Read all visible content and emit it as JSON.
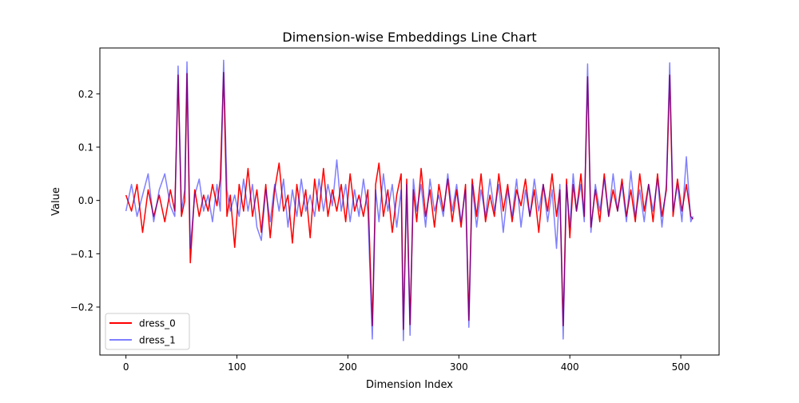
{
  "chart_data": {
    "type": "line",
    "title": "Dimension-wise Embeddings Line Chart",
    "xlabel": "Dimension Index",
    "ylabel": "Value",
    "xlim": [
      -23.5,
      534.5
    ],
    "ylim": [
      -0.29,
      0.286
    ],
    "xticks": [
      0,
      100,
      200,
      300,
      400,
      500
    ],
    "xtick_labels": [
      "0",
      "100",
      "200",
      "300",
      "400",
      "500"
    ],
    "yticks": [
      -0.2,
      -0.1,
      0.0,
      0.1,
      0.2
    ],
    "ytick_labels": [
      "−0.2",
      "−0.1",
      "0.0",
      "0.1",
      "0.2"
    ],
    "grid": false,
    "legend_position": "lower-left",
    "series": [
      {
        "name": "dress_0",
        "color": "#ff0000",
        "opacity": 1.0,
        "points": [
          [
            0,
            0.01
          ],
          [
            5,
            -0.02
          ],
          [
            10,
            0.03
          ],
          [
            15,
            -0.06
          ],
          [
            20,
            0.02
          ],
          [
            25,
            -0.03
          ],
          [
            30,
            0.01
          ],
          [
            35,
            -0.04
          ],
          [
            40,
            0.02
          ],
          [
            44,
            -0.02
          ],
          [
            47,
            0.235
          ],
          [
            50,
            -0.03
          ],
          [
            53,
            0.0
          ],
          [
            55,
            0.238
          ],
          [
            58,
            -0.117
          ],
          [
            62,
            0.02
          ],
          [
            66,
            -0.03
          ],
          [
            70,
            0.01
          ],
          [
            74,
            -0.02
          ],
          [
            78,
            0.03
          ],
          [
            82,
            -0.01
          ],
          [
            85,
            0.04
          ],
          [
            88,
            0.24
          ],
          [
            91,
            -0.03
          ],
          [
            94,
            0.01
          ],
          [
            98,
            -0.088
          ],
          [
            102,
            0.03
          ],
          [
            106,
            -0.02
          ],
          [
            110,
            0.06
          ],
          [
            114,
            -0.03
          ],
          [
            118,
            0.02
          ],
          [
            122,
            -0.06
          ],
          [
            126,
            0.03
          ],
          [
            130,
            -0.07
          ],
          [
            134,
            0.02
          ],
          [
            138,
            0.07
          ],
          [
            142,
            -0.02
          ],
          [
            146,
            0.01
          ],
          [
            150,
            -0.08
          ],
          [
            154,
            0.03
          ],
          [
            158,
            -0.03
          ],
          [
            162,
            0.02
          ],
          [
            166,
            -0.07
          ],
          [
            170,
            0.04
          ],
          [
            174,
            -0.02
          ],
          [
            178,
            0.06
          ],
          [
            182,
            -0.03
          ],
          [
            186,
            0.02
          ],
          [
            190,
            -0.02
          ],
          [
            194,
            0.03
          ],
          [
            198,
            -0.04
          ],
          [
            202,
            0.05
          ],
          [
            206,
            -0.02
          ],
          [
            210,
            0.01
          ],
          [
            214,
            -0.03
          ],
          [
            218,
            0.02
          ],
          [
            222,
            -0.235
          ],
          [
            225,
            0.03
          ],
          [
            228,
            0.07
          ],
          [
            232,
            -0.03
          ],
          [
            236,
            0.02
          ],
          [
            240,
            -0.06
          ],
          [
            244,
            0.01
          ],
          [
            248,
            0.05
          ],
          [
            250,
            -0.242
          ],
          [
            253,
            0.04
          ],
          [
            256,
            -0.233
          ],
          [
            259,
            0.02
          ],
          [
            262,
            -0.04
          ],
          [
            266,
            0.06
          ],
          [
            270,
            -0.03
          ],
          [
            274,
            0.02
          ],
          [
            278,
            -0.05
          ],
          [
            282,
            0.03
          ],
          [
            286,
            -0.02
          ],
          [
            290,
            0.04
          ],
          [
            294,
            -0.04
          ],
          [
            298,
            0.02
          ],
          [
            302,
            -0.05
          ],
          [
            306,
            0.03
          ],
          [
            309,
            -0.225
          ],
          [
            312,
            0.04
          ],
          [
            316,
            -0.03
          ],
          [
            320,
            0.05
          ],
          [
            324,
            -0.04
          ],
          [
            328,
            0.01
          ],
          [
            332,
            -0.03
          ],
          [
            336,
            0.05
          ],
          [
            340,
            -0.02
          ],
          [
            344,
            0.03
          ],
          [
            348,
            -0.04
          ],
          [
            352,
            0.02
          ],
          [
            356,
            -0.01
          ],
          [
            360,
            0.04
          ],
          [
            364,
            -0.03
          ],
          [
            368,
            0.02
          ],
          [
            372,
            -0.06
          ],
          [
            376,
            0.03
          ],
          [
            380,
            -0.02
          ],
          [
            384,
            0.05
          ],
          [
            388,
            -0.03
          ],
          [
            391,
            0.02
          ],
          [
            394,
            -0.235
          ],
          [
            397,
            0.04
          ],
          [
            400,
            -0.07
          ],
          [
            403,
            0.03
          ],
          [
            406,
            -0.02
          ],
          [
            410,
            0.05
          ],
          [
            413,
            -0.03
          ],
          [
            416,
            0.232
          ],
          [
            419,
            -0.05
          ],
          [
            423,
            0.02
          ],
          [
            427,
            -0.04
          ],
          [
            431,
            0.05
          ],
          [
            435,
            -0.03
          ],
          [
            439,
            0.02
          ],
          [
            443,
            -0.02
          ],
          [
            447,
            0.04
          ],
          [
            451,
            -0.03
          ],
          [
            455,
            0.02
          ],
          [
            459,
            -0.04
          ],
          [
            463,
            0.05
          ],
          [
            467,
            -0.02
          ],
          [
            471,
            0.03
          ],
          [
            475,
            -0.04
          ],
          [
            479,
            0.05
          ],
          [
            483,
            -0.03
          ],
          [
            487,
            0.02
          ],
          [
            490,
            0.235
          ],
          [
            493,
            -0.03
          ],
          [
            497,
            0.04
          ],
          [
            501,
            -0.02
          ],
          [
            505,
            0.03
          ],
          [
            509,
            -0.03
          ],
          [
            511,
            -0.035
          ]
        ]
      },
      {
        "name": "dress_1",
        "color": "#0000ff",
        "opacity": 0.5,
        "points": [
          [
            0,
            -0.02
          ],
          [
            5,
            0.03
          ],
          [
            10,
            -0.03
          ],
          [
            15,
            0.01
          ],
          [
            20,
            0.05
          ],
          [
            25,
            -0.04
          ],
          [
            30,
            0.02
          ],
          [
            35,
            0.05
          ],
          [
            40,
            -0.01
          ],
          [
            44,
            -0.03
          ],
          [
            47,
            0.252
          ],
          [
            50,
            -0.02
          ],
          [
            53,
            0.02
          ],
          [
            55,
            0.26
          ],
          [
            58,
            -0.09
          ],
          [
            62,
            0.01
          ],
          [
            66,
            0.04
          ],
          [
            70,
            -0.02
          ],
          [
            74,
            0.01
          ],
          [
            78,
            -0.04
          ],
          [
            82,
            0.03
          ],
          [
            85,
            -0.02
          ],
          [
            88,
            0.263
          ],
          [
            91,
            0.02
          ],
          [
            94,
            -0.02
          ],
          [
            98,
            0.01
          ],
          [
            102,
            -0.03
          ],
          [
            106,
            0.04
          ],
          [
            110,
            -0.02
          ],
          [
            114,
            0.03
          ],
          [
            118,
            -0.05
          ],
          [
            122,
            -0.075
          ],
          [
            126,
            0.02
          ],
          [
            130,
            -0.04
          ],
          [
            134,
            0.03
          ],
          [
            138,
            -0.02
          ],
          [
            142,
            0.04
          ],
          [
            146,
            -0.05
          ],
          [
            150,
            0.02
          ],
          [
            154,
            -0.03
          ],
          [
            158,
            0.04
          ],
          [
            162,
            -0.02
          ],
          [
            166,
            0.01
          ],
          [
            170,
            -0.03
          ],
          [
            174,
            0.04
          ],
          [
            178,
            -0.02
          ],
          [
            182,
            0.03
          ],
          [
            186,
            -0.01
          ],
          [
            190,
            0.076
          ],
          [
            194,
            -0.02
          ],
          [
            198,
            0.03
          ],
          [
            202,
            -0.04
          ],
          [
            206,
            0.02
          ],
          [
            210,
            -0.03
          ],
          [
            214,
            0.04
          ],
          [
            218,
            -0.02
          ],
          [
            222,
            -0.26
          ],
          [
            225,
            0.02
          ],
          [
            228,
            -0.04
          ],
          [
            232,
            0.05
          ],
          [
            236,
            -0.02
          ],
          [
            240,
            0.03
          ],
          [
            244,
            -0.05
          ],
          [
            248,
            0.02
          ],
          [
            250,
            -0.263
          ],
          [
            253,
            0.03
          ],
          [
            256,
            -0.253
          ],
          [
            259,
            0.04
          ],
          [
            262,
            -0.02
          ],
          [
            266,
            0.03
          ],
          [
            270,
            -0.05
          ],
          [
            274,
            0.04
          ],
          [
            278,
            -0.02
          ],
          [
            282,
            0.01
          ],
          [
            286,
            -0.03
          ],
          [
            290,
            0.05
          ],
          [
            294,
            -0.02
          ],
          [
            298,
            0.03
          ],
          [
            302,
            -0.04
          ],
          [
            306,
            0.02
          ],
          [
            309,
            -0.238
          ],
          [
            312,
            0.03
          ],
          [
            316,
            -0.05
          ],
          [
            320,
            0.02
          ],
          [
            324,
            -0.03
          ],
          [
            328,
            0.04
          ],
          [
            332,
            -0.02
          ],
          [
            336,
            0.03
          ],
          [
            340,
            -0.06
          ],
          [
            344,
            0.02
          ],
          [
            348,
            -0.03
          ],
          [
            352,
            0.04
          ],
          [
            356,
            -0.05
          ],
          [
            360,
            0.02
          ],
          [
            364,
            -0.03
          ],
          [
            368,
            0.04
          ],
          [
            372,
            -0.02
          ],
          [
            376,
            0.03
          ],
          [
            380,
            -0.04
          ],
          [
            384,
            0.02
          ],
          [
            388,
            -0.09
          ],
          [
            391,
            0.03
          ],
          [
            394,
            -0.26
          ],
          [
            397,
            0.03
          ],
          [
            400,
            -0.05
          ],
          [
            403,
            0.05
          ],
          [
            406,
            -0.02
          ],
          [
            410,
            0.03
          ],
          [
            413,
            -0.04
          ],
          [
            416,
            0.256
          ],
          [
            419,
            -0.06
          ],
          [
            423,
            0.03
          ],
          [
            427,
            -0.02
          ],
          [
            431,
            0.04
          ],
          [
            435,
            -0.03
          ],
          [
            439,
            0.05
          ],
          [
            443,
            -0.02
          ],
          [
            447,
            0.03
          ],
          [
            451,
            -0.04
          ],
          [
            455,
            0.055
          ],
          [
            459,
            -0.03
          ],
          [
            463,
            0.02
          ],
          [
            467,
            -0.04
          ],
          [
            471,
            0.03
          ],
          [
            475,
            -0.02
          ],
          [
            479,
            0.04
          ],
          [
            483,
            -0.05
          ],
          [
            487,
            0.03
          ],
          [
            490,
            0.258
          ],
          [
            493,
            -0.02
          ],
          [
            497,
            0.03
          ],
          [
            501,
            -0.04
          ],
          [
            505,
            0.082
          ],
          [
            509,
            -0.04
          ],
          [
            511,
            -0.03
          ]
        ]
      }
    ]
  }
}
